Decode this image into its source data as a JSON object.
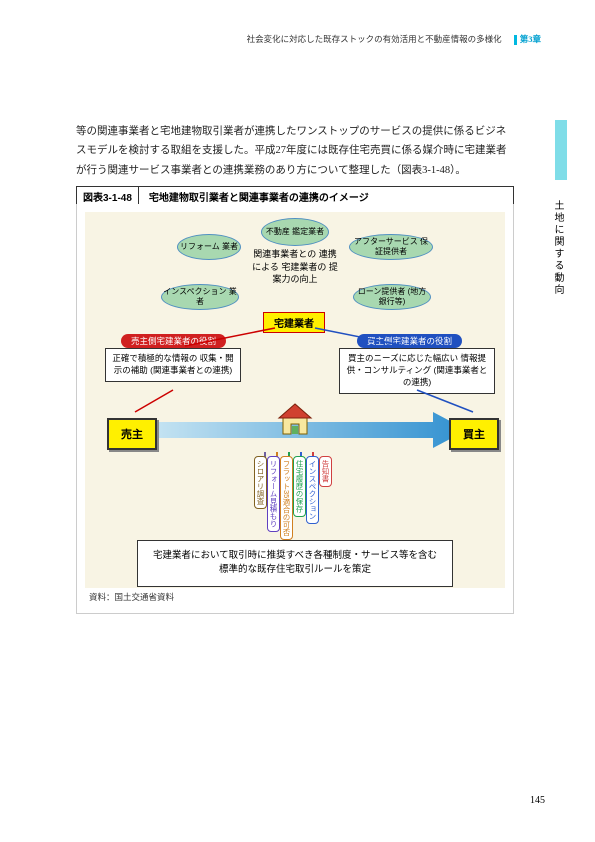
{
  "header": {
    "breadcrumb": "社会変化に対応した既存ストックの有効活用と不動産情報の多様化",
    "chapter": "第3章"
  },
  "sidebar": {
    "text": "土地に関する動向"
  },
  "body": {
    "paragraph": "等の関連事業者と宅地建物取引業者が連携したワンストップのサービスの提供に係るビジネスモデルを検討する取組を支援した。平成27年度には既存住宅売買に係る媒介時に宅建業者が行う関連サービス事業者との連携業務のあり方について整理した（図表3-1-48）。"
  },
  "figure": {
    "number": "図表3-1-48",
    "title": "宅地建物取引業者と関連事業者の連携のイメージ",
    "source": "資料：国土交通省資料"
  },
  "diagram": {
    "ovals": {
      "top": "不動産\n鑑定業者",
      "left_upper": "リフォーム\n業者",
      "right_upper": "アフターサービス\n保証提供者",
      "left_lower": "インスペクション\n業者",
      "right_lower": "ローン提供者\n(地方銀行等)"
    },
    "center_text": "関連事業者との\n連携による\n宅建業者の\n提案力の向上",
    "takken": "宅建業者",
    "seller_role_label": "売主側宅建業者の役割",
    "seller_role_box": "正確で積極的な情報の\n収集・開示の補助\n(関連事業者との連携)",
    "buyer_role_label": "買主側宅建業者の役割",
    "buyer_role_box": "買主のニーズに応じた幅広い\n情報提供・コンサルティング\n(関連事業者との連携)",
    "seller": "売主",
    "buyer": "買主",
    "vert_labels": [
      "告知書",
      "インスペクション",
      "住宅履歴の保存",
      "フラット35適合の可否",
      "リフォーム見積もり",
      "シロアリ調査"
    ],
    "vert_colors": [
      "#d04040",
      "#3060d0",
      "#20a050",
      "#d08020",
      "#6040c0",
      "#806020"
    ],
    "bottom_text": "宅建業者において取引時に推奨すべき各種制度・サービス等を含む\n標準的な既存住宅取引ルールを策定"
  },
  "page_number": "145"
}
